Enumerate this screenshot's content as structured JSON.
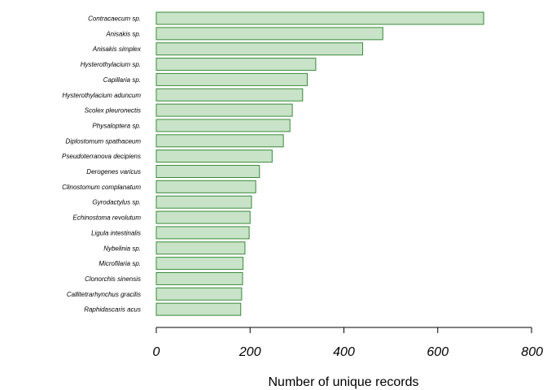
{
  "chart_data": {
    "type": "bar",
    "orientation": "horizontal",
    "categories": [
      "Contracaecum sp.",
      "Anisakis sp.",
      "Anisakis simplex",
      "Hysterothylacium sp.",
      "Capillaria sp.",
      "Hysterothylacium aduncum",
      "Scolex pleuronectis",
      "Physaloptera sp.",
      "Diplostomum spathaceum",
      "Pseudoterranova decipiens",
      "Derogenes varicus",
      "Clinostomum complanatum",
      "Gyrodactylus sp.",
      "Echinostoma revolutum",
      "Ligula intestinalis",
      "Nybelinia sp.",
      "Microfilaria sp.",
      "Clonorchis sinensis",
      "Callitetrarhynchus gracilis",
      "Raphidascaris acus"
    ],
    "values": [
      698,
      483,
      440,
      340,
      322,
      312,
      290,
      285,
      271,
      247,
      220,
      212,
      203,
      200,
      198,
      189,
      185,
      184,
      182,
      180
    ],
    "xlabel": "Number of unique records",
    "xlim": [
      0,
      800
    ],
    "xticks": [
      0,
      200,
      400,
      600,
      800
    ],
    "grid": false,
    "colors": {
      "bar_fill": "#c8e3c8",
      "bar_stroke": "#3a8a3a",
      "axis": "#000000"
    }
  }
}
